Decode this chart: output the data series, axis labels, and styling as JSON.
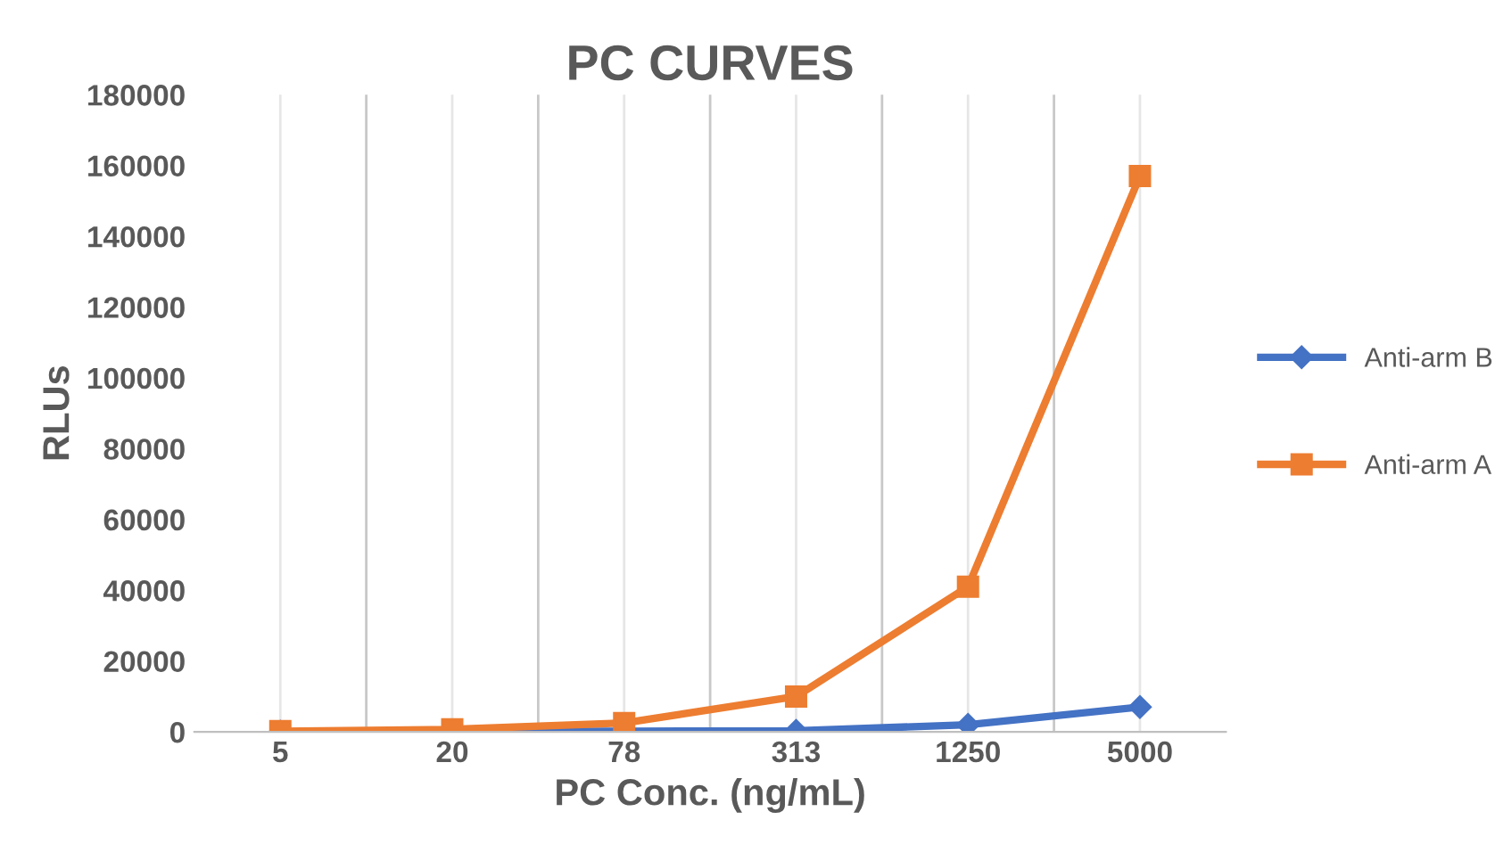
{
  "chart_data": {
    "type": "line",
    "title": "PC CURVES",
    "xlabel": "PC Conc. (ng/mL)",
    "ylabel": "RLUs",
    "categories": [
      "5",
      "20",
      "78",
      "313",
      "1250",
      "5000"
    ],
    "series": [
      {
        "name": "Anti-arm B",
        "color": "#4472c4",
        "marker": "diamond",
        "values": [
          0,
          200,
          200,
          300,
          2000,
          7000
        ]
      },
      {
        "name": "Anti-arm A",
        "color": "#ed7d31",
        "marker": "square",
        "values": [
          200,
          700,
          2500,
          10000,
          41000,
          157000
        ]
      }
    ],
    "ylim": [
      0,
      180000
    ],
    "yticks": [
      0,
      20000,
      40000,
      60000,
      80000,
      100000,
      120000,
      140000,
      160000,
      180000
    ],
    "grid": "x",
    "legend": "right",
    "line_style": "solid"
  }
}
